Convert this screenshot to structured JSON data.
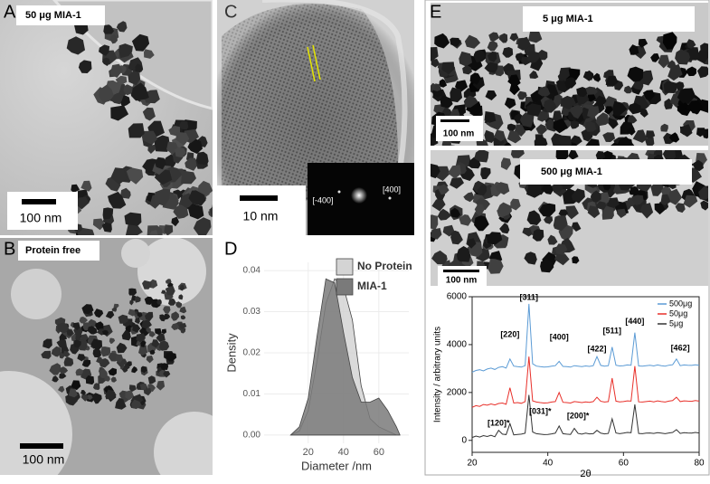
{
  "panels": {
    "A": {
      "letter": "A",
      "caption": "50 μg MIA-1",
      "scale": "100 nm"
    },
    "B": {
      "letter": "B",
      "caption": "Protein free",
      "scale": "100 nm"
    },
    "C": {
      "letter": "C",
      "scale": "10 nm",
      "spots": [
        "[-400]",
        "[400]"
      ]
    },
    "E": {
      "letter": "E",
      "top_caption": "5 μg MIA-1",
      "top_scale": "100 nm",
      "bottom_caption": "500 μg MIA-1",
      "bottom_scale": "100 nm"
    }
  },
  "chart_data": [
    {
      "type": "area",
      "panel": "D",
      "xlabel": "Diameter /nm",
      "ylabel": "Density",
      "x": [
        10,
        15,
        20,
        25,
        30,
        35,
        40,
        45,
        50,
        55,
        60,
        65,
        70,
        72
      ],
      "series": [
        {
          "name": "No Protein",
          "color": "#d4d4d4",
          "values": [
            0,
            0.001,
            0.006,
            0.018,
            0.032,
            0.038,
            0.036,
            0.028,
            0.012,
            0.004,
            0.002,
            0.001,
            0,
            0
          ]
        },
        {
          "name": "MIA-1",
          "color": "#7a7a7a",
          "values": [
            0,
            0.002,
            0.009,
            0.024,
            0.038,
            0.037,
            0.025,
            0.014,
            0.008,
            0.008,
            0.009,
            0.006,
            0.002,
            0
          ]
        }
      ],
      "xlim": [
        -5,
        77
      ],
      "ylim": [
        -0.002,
        0.042
      ],
      "xticks": [
        20,
        40,
        60
      ],
      "yticks": [
        {
          "value": 0,
          "label": "0.00"
        },
        {
          "value": 0.01,
          "label": "0.01"
        },
        {
          "value": 0.02,
          "label": "0.02"
        },
        {
          "value": 0.03,
          "label": "0.03"
        },
        {
          "value": 0.04,
          "label": "0.04"
        }
      ],
      "grid": true,
      "legend": "top-right"
    },
    {
      "type": "line",
      "xlabel": "2θ",
      "ylabel": "Intensity / arbitrary units",
      "x": [
        20,
        21,
        22,
        23,
        24,
        25,
        26,
        27,
        28,
        29,
        30,
        31,
        32,
        33,
        34,
        35,
        36,
        37,
        38,
        39,
        40,
        41,
        42,
        43,
        44,
        45,
        46,
        47,
        48,
        49,
        50,
        51,
        52,
        53,
        54,
        55,
        56,
        57,
        58,
        59,
        60,
        61,
        62,
        63,
        64,
        65,
        66,
        67,
        68,
        69,
        70,
        71,
        72,
        73,
        74,
        75,
        76,
        77,
        78,
        79,
        80
      ],
      "series": [
        {
          "name": "500μg",
          "color": "#5b9bd5",
          "values": [
            2850,
            2920,
            2950,
            2900,
            2980,
            3020,
            2960,
            3050,
            3080,
            3020,
            3400,
            3100,
            3080,
            3060,
            3120,
            5700,
            3200,
            3100,
            3080,
            3060,
            3070,
            3100,
            3120,
            3300,
            3090,
            3080,
            3060,
            3120,
            3100,
            3080,
            3110,
            3090,
            3120,
            3500,
            3130,
            3100,
            3120,
            3900,
            3140,
            3110,
            3120,
            3150,
            3140,
            4500,
            3110,
            3100,
            3120,
            3140,
            3110,
            3150,
            3120,
            3100,
            3140,
            3160,
            3400,
            3120,
            3150,
            3140,
            3130,
            3160,
            3140
          ]
        },
        {
          "name": "50μg",
          "color": "#e8302a",
          "values": [
            1380,
            1450,
            1420,
            1500,
            1470,
            1520,
            1480,
            1540,
            1560,
            1510,
            2200,
            1560,
            1580,
            1550,
            1620,
            3500,
            1650,
            1600,
            1580,
            1560,
            1570,
            1600,
            1620,
            2000,
            1590,
            1580,
            1560,
            1620,
            1600,
            1580,
            1610,
            1590,
            1620,
            1800,
            1630,
            1600,
            1620,
            2600,
            1640,
            1610,
            1620,
            1650,
            1640,
            3100,
            1610,
            1600,
            1620,
            1640,
            1610,
            1650,
            1620,
            1600,
            1640,
            1660,
            1800,
            1620,
            1650,
            1640,
            1630,
            1660,
            1640
          ]
        },
        {
          "name": "5μg",
          "color": "#333333",
          "values": [
            120,
            180,
            140,
            200,
            160,
            210,
            150,
            420,
            260,
            240,
            700,
            230,
            250,
            260,
            300,
            1900,
            350,
            280,
            260,
            240,
            250,
            270,
            300,
            600,
            280,
            260,
            250,
            500,
            290,
            260,
            300,
            270,
            280,
            420,
            300,
            270,
            290,
            900,
            310,
            280,
            300,
            330,
            320,
            1500,
            290,
            280,
            300,
            310,
            290,
            320,
            300,
            280,
            310,
            330,
            450,
            290,
            320,
            310,
            300,
            330,
            310
          ]
        }
      ],
      "annotations": [
        {
          "label": "[220]",
          "x": 30,
          "y": 4400
        },
        {
          "label": "[311]",
          "x": 35,
          "y": 5950
        },
        {
          "label": "[400]",
          "x": 43,
          "y": 4300
        },
        {
          "label": "[422]",
          "x": 53,
          "y": 3800
        },
        {
          "label": "[511]",
          "x": 57,
          "y": 4550
        },
        {
          "label": "[440]",
          "x": 63,
          "y": 4950
        },
        {
          "label": "[462]",
          "x": 75,
          "y": 3850
        },
        {
          "label": "[120]*",
          "x": 27,
          "y": 700
        },
        {
          "label": "[031]*",
          "x": 38,
          "y": 1200
        },
        {
          "label": "[200]*",
          "x": 48,
          "y": 1000
        }
      ],
      "xlim": [
        20,
        80
      ],
      "ylim": [
        -500,
        6000
      ],
      "xticks": [
        20,
        40,
        60,
        80
      ],
      "yticks": [
        0,
        2000,
        4000,
        6000
      ],
      "legend": "top-right"
    }
  ]
}
